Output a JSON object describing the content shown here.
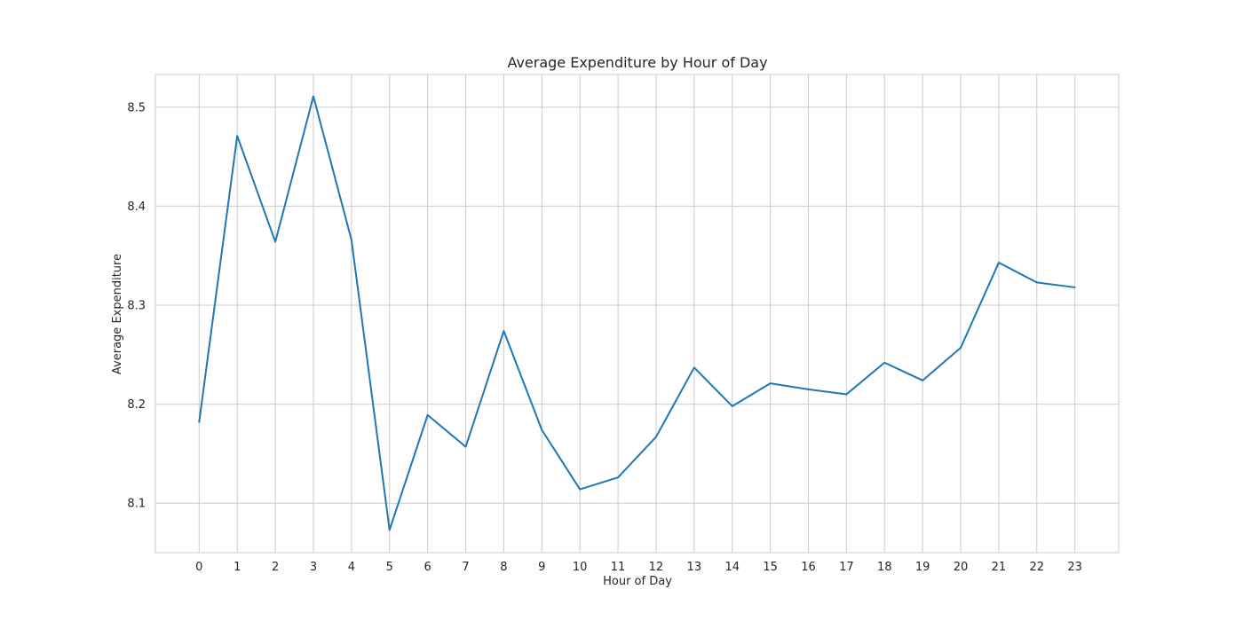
{
  "chart_data": {
    "type": "line",
    "title": "Average Expenditure by Hour of Day",
    "xlabel": "Hour of Day",
    "ylabel": "Average Expenditure",
    "x": [
      0,
      1,
      2,
      3,
      4,
      5,
      6,
      7,
      8,
      9,
      10,
      11,
      12,
      13,
      14,
      15,
      16,
      17,
      18,
      19,
      20,
      21,
      22,
      23
    ],
    "x_tick_labels": [
      "0",
      "1",
      "2",
      "3",
      "4",
      "5",
      "6",
      "7",
      "8",
      "9",
      "10",
      "11",
      "12",
      "13",
      "14",
      "15",
      "16",
      "17",
      "18",
      "19",
      "20",
      "21",
      "22",
      "23"
    ],
    "y_ticks": [
      8.1,
      8.2,
      8.3,
      8.4,
      8.5
    ],
    "y_tick_labels": [
      "8.1",
      "8.2",
      "8.3",
      "8.4",
      "8.5"
    ],
    "xlim": [
      -1.15,
      24.15
    ],
    "ylim": [
      8.05,
      8.533
    ],
    "grid": true,
    "series": [
      {
        "color": "#1f77b4",
        "values": [
          8.182,
          8.471,
          8.364,
          8.511,
          8.366,
          8.073,
          8.189,
          8.157,
          8.274,
          8.174,
          8.114,
          8.126,
          8.167,
          8.237,
          8.198,
          8.221,
          8.215,
          8.21,
          8.242,
          8.224,
          8.257,
          8.343,
          8.323,
          8.318
        ]
      }
    ]
  }
}
